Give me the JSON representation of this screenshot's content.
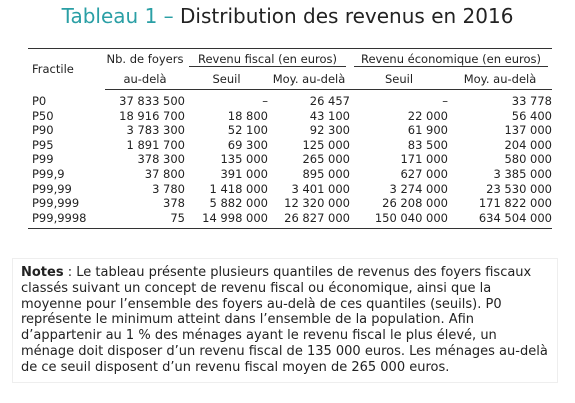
{
  "title": {
    "label": "Tableau 1 –",
    "text": "Distribution des revenus en 2016"
  },
  "table": {
    "headers": {
      "fractile": "Fractile",
      "foyers": [
        "Nb. de foyers",
        "au-delà"
      ],
      "fiscal": {
        "group": "Revenu fiscal (en euros)",
        "seuil": "Seuil",
        "moy": "Moy. au-delà"
      },
      "economique": {
        "group": "Revenu économique (en euros)",
        "seuil": "Seuil",
        "moy": "Moy. au-delà"
      }
    },
    "rows": [
      [
        "P0",
        "37 833 500",
        "–",
        "26 457",
        "–",
        "33 778"
      ],
      [
        "P50",
        "18 916 700",
        "18 800",
        "43 100",
        "22 000",
        "56 400"
      ],
      [
        "P90",
        "3 783 300",
        "52 100",
        "92 300",
        "61 900",
        "137 000"
      ],
      [
        "P95",
        "1 891 700",
        "69 300",
        "125 000",
        "83 500",
        "204 000"
      ],
      [
        "P99",
        "378 300",
        "135 000",
        "265 000",
        "171 000",
        "580 000"
      ],
      [
        "P99,9",
        "37 800",
        "391 000",
        "895 000",
        "627 000",
        "3 385 000"
      ],
      [
        "P99,99",
        "3 780",
        "1 418 000",
        "3 401 000",
        "3 274 000",
        "23 530 000"
      ],
      [
        "P99,999",
        "378",
        "5 882 000",
        "12 320 000",
        "26 208 000",
        "171 822 000"
      ],
      [
        "P99,9998",
        "75",
        "14 998 000",
        "26 827 000",
        "150 040 000",
        "634 504 000"
      ]
    ]
  },
  "notes": {
    "label": "Notes",
    "text": " : Le tableau présente plusieurs quantiles de revenus des foyers fiscaux classés suivant un concept de revenu fiscal ou économique, ainsi que la moyenne pour l’ensemble des foyers au-delà de ces quantiles (seuils). P0 représente le minimum atteint dans l’ensemble de la population. Afin d’appartenir au 1 % des ménages ayant le revenu fiscal le plus élevé, un ménage doit disposer d’un revenu fiscal de 135 000 euros. Les ménages au-delà de ce seuil disposent d’un revenu fiscal moyen de 265 000 euros."
  }
}
